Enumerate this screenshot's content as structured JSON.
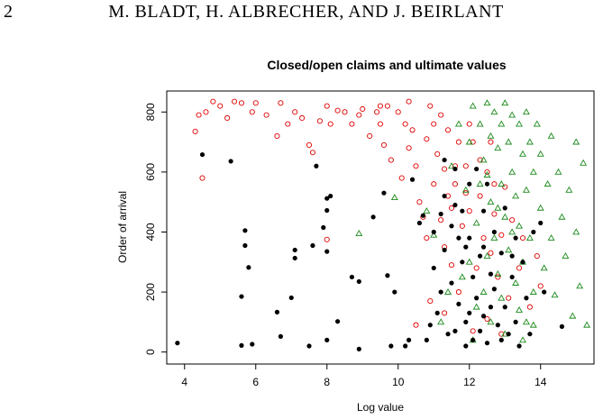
{
  "header": {
    "page_number": "2",
    "authors": "M. BLADT, H. ALBRECHER, AND J. BEIRLANT"
  },
  "chart_data": {
    "type": "scatter",
    "title": "Closed/open claims and ultimate values",
    "xlabel": "Log value",
    "ylabel": "Order of arrival",
    "xlim": [
      3.5,
      15.5
    ],
    "ylim": [
      -40,
      870
    ],
    "xticks": [
      4,
      6,
      8,
      10,
      12,
      14
    ],
    "yticks": [
      0,
      200,
      400,
      600,
      800
    ],
    "grid": false,
    "legend": "none",
    "series": [
      {
        "color": "#000000",
        "marker": "filled-circle",
        "points": [
          [
            3.8,
            30
          ],
          [
            4.5,
            658
          ],
          [
            5.3,
            636
          ],
          [
            5.6,
            185
          ],
          [
            5.7,
            405
          ],
          [
            5.7,
            355
          ],
          [
            5.8,
            282
          ],
          [
            5.6,
            22
          ],
          [
            5.9,
            26
          ],
          [
            6.6,
            133
          ],
          [
            6.7,
            52
          ],
          [
            7.0,
            181
          ],
          [
            7.1,
            340
          ],
          [
            7.1,
            313
          ],
          [
            7.5,
            20
          ],
          [
            7.6,
            355
          ],
          [
            7.7,
            620
          ],
          [
            7.9,
            415
          ],
          [
            8.0,
            472
          ],
          [
            8.0,
            512
          ],
          [
            8.1,
            520
          ],
          [
            8.0,
            40
          ],
          [
            8.0,
            335
          ],
          [
            8.3,
            102
          ],
          [
            8.7,
            250
          ],
          [
            8.9,
            235
          ],
          [
            8.9,
            10
          ],
          [
            9.3,
            450
          ],
          [
            9.6,
            530
          ],
          [
            9.7,
            255
          ],
          [
            9.8,
            20
          ],
          [
            9.9,
            200
          ],
          [
            10.2,
            20
          ],
          [
            10.3,
            40
          ],
          [
            10.4,
            575
          ],
          [
            10.6,
            430
          ],
          [
            10.7,
            455
          ],
          [
            10.8,
            40
          ],
          [
            10.9,
            90
          ],
          [
            11.0,
            280
          ],
          [
            11.1,
            130
          ],
          [
            11.2,
            200
          ],
          [
            11.3,
            340
          ],
          [
            11.3,
            520
          ],
          [
            11.4,
            60
          ],
          [
            11.5,
            230
          ],
          [
            11.5,
            420
          ],
          [
            11.6,
            610
          ],
          [
            11.7,
            160
          ],
          [
            11.8,
            300
          ],
          [
            11.8,
            470
          ],
          [
            11.9,
            100
          ],
          [
            12.0,
            560
          ],
          [
            12.0,
            380
          ],
          [
            12.1,
            250
          ],
          [
            12.1,
            40
          ],
          [
            12.2,
            180
          ],
          [
            12.3,
            320
          ],
          [
            12.4,
            470
          ],
          [
            12.4,
            120
          ],
          [
            12.5,
            30
          ],
          [
            12.6,
            260
          ],
          [
            12.7,
            400
          ],
          [
            12.7,
            210
          ],
          [
            12.8,
            90
          ],
          [
            12.9,
            330
          ],
          [
            13.0,
            150
          ],
          [
            13.0,
            480
          ],
          [
            13.1,
            60
          ],
          [
            13.2,
            250
          ],
          [
            13.3,
            380
          ],
          [
            13.3,
            100
          ],
          [
            13.4,
            20
          ],
          [
            13.5,
            300
          ],
          [
            13.6,
            180
          ],
          [
            13.7,
            60
          ],
          [
            13.8,
            400
          ],
          [
            14.0,
            430
          ],
          [
            14.1,
            200
          ],
          [
            14.6,
            85
          ],
          [
            11.3,
            640
          ],
          [
            11.6,
            490
          ],
          [
            11.9,
            350
          ],
          [
            12.2,
            610
          ],
          [
            12.5,
            560
          ],
          [
            11.0,
            400
          ],
          [
            11.2,
            460
          ],
          [
            11.6,
            70
          ],
          [
            11.9,
            20
          ],
          [
            12.3,
            70
          ],
          [
            12.6,
            150
          ],
          [
            12.9,
            40
          ],
          [
            13.2,
            320
          ],
          [
            12.0,
            130
          ],
          [
            11.7,
            380
          ],
          [
            12.4,
            350
          ]
        ]
      },
      {
        "color": "#e00000",
        "marker": "open-circle",
        "points": [
          [
            4.3,
            735
          ],
          [
            4.4,
            790
          ],
          [
            4.5,
            580
          ],
          [
            4.6,
            800
          ],
          [
            4.8,
            835
          ],
          [
            5.0,
            820
          ],
          [
            5.2,
            780
          ],
          [
            5.4,
            835
          ],
          [
            5.6,
            830
          ],
          [
            5.9,
            800
          ],
          [
            6.0,
            830
          ],
          [
            6.3,
            790
          ],
          [
            6.6,
            720
          ],
          [
            6.7,
            830
          ],
          [
            6.9,
            760
          ],
          [
            7.1,
            800
          ],
          [
            7.3,
            780
          ],
          [
            7.5,
            690
          ],
          [
            7.6,
            665
          ],
          [
            7.8,
            770
          ],
          [
            8.0,
            820
          ],
          [
            8.0,
            375
          ],
          [
            8.1,
            760
          ],
          [
            8.3,
            805
          ],
          [
            8.5,
            800
          ],
          [
            8.7,
            760
          ],
          [
            8.9,
            790
          ],
          [
            9.0,
            810
          ],
          [
            9.2,
            720
          ],
          [
            9.4,
            800
          ],
          [
            9.5,
            760
          ],
          [
            9.6,
            690
          ],
          [
            9.7,
            820
          ],
          [
            9.8,
            640
          ],
          [
            10.0,
            800
          ],
          [
            10.1,
            580
          ],
          [
            10.2,
            760
          ],
          [
            10.3,
            680
          ],
          [
            10.4,
            740
          ],
          [
            10.5,
            620
          ],
          [
            10.6,
            500
          ],
          [
            10.7,
            450
          ],
          [
            10.8,
            710
          ],
          [
            10.9,
            820
          ],
          [
            11.0,
            560
          ],
          [
            11.1,
            660
          ],
          [
            11.2,
            790
          ],
          [
            11.3,
            610
          ],
          [
            11.3,
            350
          ],
          [
            11.4,
            740
          ],
          [
            11.5,
            290
          ],
          [
            11.6,
            560
          ],
          [
            11.7,
            700
          ],
          [
            11.8,
            420
          ],
          [
            11.9,
            620
          ],
          [
            12.0,
            470
          ],
          [
            12.1,
            700
          ],
          [
            12.2,
            280
          ],
          [
            12.3,
            520
          ],
          [
            12.4,
            380
          ],
          [
            12.5,
            600
          ],
          [
            12.6,
            330
          ],
          [
            12.7,
            460
          ],
          [
            12.8,
            250
          ],
          [
            12.9,
            390
          ],
          [
            13.0,
            550
          ],
          [
            13.1,
            180
          ],
          [
            13.2,
            440
          ],
          [
            13.4,
            280
          ],
          [
            13.5,
            380
          ],
          [
            13.7,
            150
          ],
          [
            13.9,
            320
          ],
          [
            14.0,
            220
          ],
          [
            10.5,
            90
          ],
          [
            10.9,
            170
          ],
          [
            11.3,
            130
          ],
          [
            11.7,
            200
          ],
          [
            12.1,
            70
          ],
          [
            12.5,
            110
          ],
          [
            12.9,
            60
          ],
          [
            9.5,
            820
          ],
          [
            10.3,
            835
          ],
          [
            11.0,
            760
          ],
          [
            11.6,
            620
          ],
          [
            12.0,
            760
          ],
          [
            11.4,
            520
          ],
          [
            10.8,
            380
          ],
          [
            11.2,
            440
          ],
          [
            11.9,
            530
          ],
          [
            12.6,
            700
          ],
          [
            12.3,
            640
          ],
          [
            11.5,
            480
          ],
          [
            12.7,
            560
          ]
        ]
      },
      {
        "color": "#1a8a1a",
        "marker": "open-triangle",
        "points": [
          [
            8.9,
            395
          ],
          [
            9.9,
            515
          ],
          [
            10.8,
            470
          ],
          [
            11.0,
            390
          ],
          [
            11.5,
            620
          ],
          [
            11.7,
            760
          ],
          [
            11.9,
            540
          ],
          [
            12.0,
            700
          ],
          [
            12.1,
            820
          ],
          [
            12.2,
            430
          ],
          [
            12.3,
            760
          ],
          [
            12.4,
            640
          ],
          [
            12.5,
            830
          ],
          [
            12.5,
            590
          ],
          [
            12.6,
            720
          ],
          [
            12.6,
            500
          ],
          [
            12.7,
            800
          ],
          [
            12.7,
            380
          ],
          [
            12.8,
            680
          ],
          [
            12.8,
            260
          ],
          [
            12.9,
            760
          ],
          [
            12.9,
            560
          ],
          [
            13.0,
            830
          ],
          [
            13.0,
            450
          ],
          [
            13.1,
            700
          ],
          [
            13.1,
            340
          ],
          [
            13.2,
            790
          ],
          [
            13.2,
            600
          ],
          [
            13.3,
            520
          ],
          [
            13.3,
            230
          ],
          [
            13.4,
            760
          ],
          [
            13.4,
            420
          ],
          [
            13.5,
            660
          ],
          [
            13.5,
            300
          ],
          [
            13.6,
            800
          ],
          [
            13.6,
            540
          ],
          [
            13.7,
            700
          ],
          [
            13.7,
            380
          ],
          [
            13.8,
            600
          ],
          [
            13.8,
            200
          ],
          [
            13.9,
            760
          ],
          [
            14.0,
            480
          ],
          [
            14.0,
            660
          ],
          [
            14.1,
            280
          ],
          [
            14.2,
            560
          ],
          [
            14.3,
            720
          ],
          [
            14.3,
            380
          ],
          [
            14.4,
            190
          ],
          [
            14.5,
            600
          ],
          [
            14.6,
            450
          ],
          [
            14.7,
            320
          ],
          [
            14.8,
            540
          ],
          [
            15.0,
            700
          ],
          [
            15.1,
            220
          ],
          [
            15.2,
            630
          ],
          [
            15.3,
            90
          ],
          [
            15.0,
            400
          ],
          [
            14.9,
            120
          ],
          [
            12.2,
            150
          ],
          [
            12.6,
            100
          ],
          [
            13.0,
            60
          ],
          [
            13.4,
            140
          ],
          [
            13.8,
            90
          ],
          [
            12.0,
            300
          ],
          [
            12.4,
            200
          ],
          [
            11.8,
            250
          ],
          [
            12.3,
            560
          ],
          [
            12.8,
            480
          ],
          [
            13.2,
            400
          ],
          [
            12.5,
            320
          ],
          [
            13.6,
            100
          ],
          [
            11.4,
            200
          ],
          [
            11.2,
            100
          ],
          [
            12.1,
            40
          ],
          [
            12.9,
            180
          ],
          [
            13.5,
            40
          ]
        ]
      }
    ]
  }
}
